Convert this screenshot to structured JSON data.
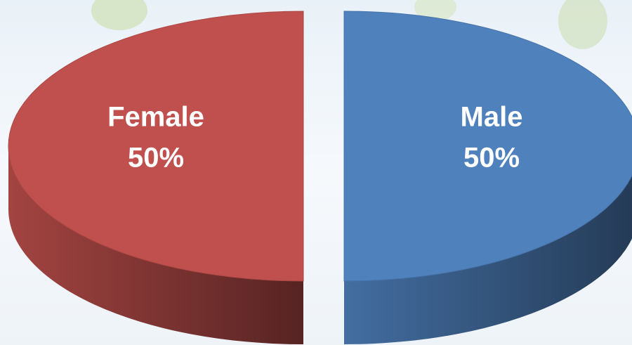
{
  "chart_data": {
    "type": "pie",
    "categories": [
      "Female",
      "Male"
    ],
    "values": [
      50,
      50
    ],
    "value_labels": [
      "50%",
      "50%"
    ],
    "colors": [
      "#c0504d",
      "#4f81bd"
    ]
  }
}
